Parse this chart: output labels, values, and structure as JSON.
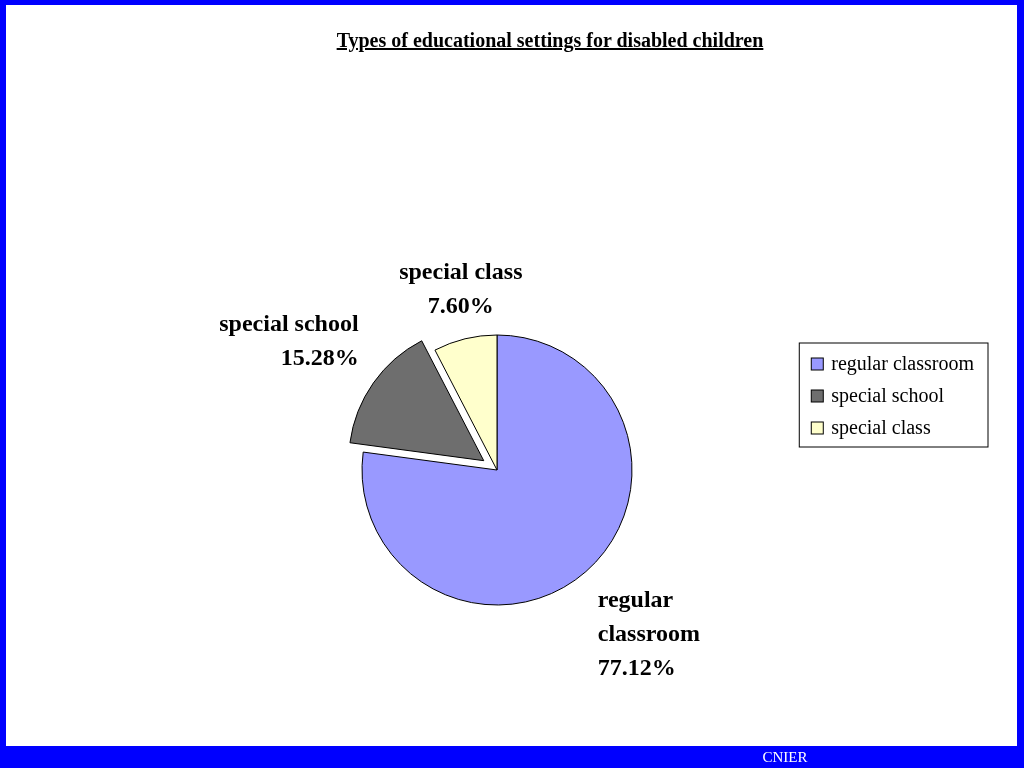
{
  "chart_data": {
    "type": "pie",
    "title": "Types of educational settings for disabled children",
    "categories": [
      "regular classroom",
      "special school",
      "special class"
    ],
    "values": [
      77.12,
      15.28,
      7.6
    ],
    "value_labels": [
      "77.12%",
      "15.28%",
      "7.60%"
    ],
    "colors": [
      "#9999ff",
      "#6e6e6e",
      "#ffffcc"
    ],
    "legend": "right",
    "annotations": [
      "CNIER"
    ]
  }
}
